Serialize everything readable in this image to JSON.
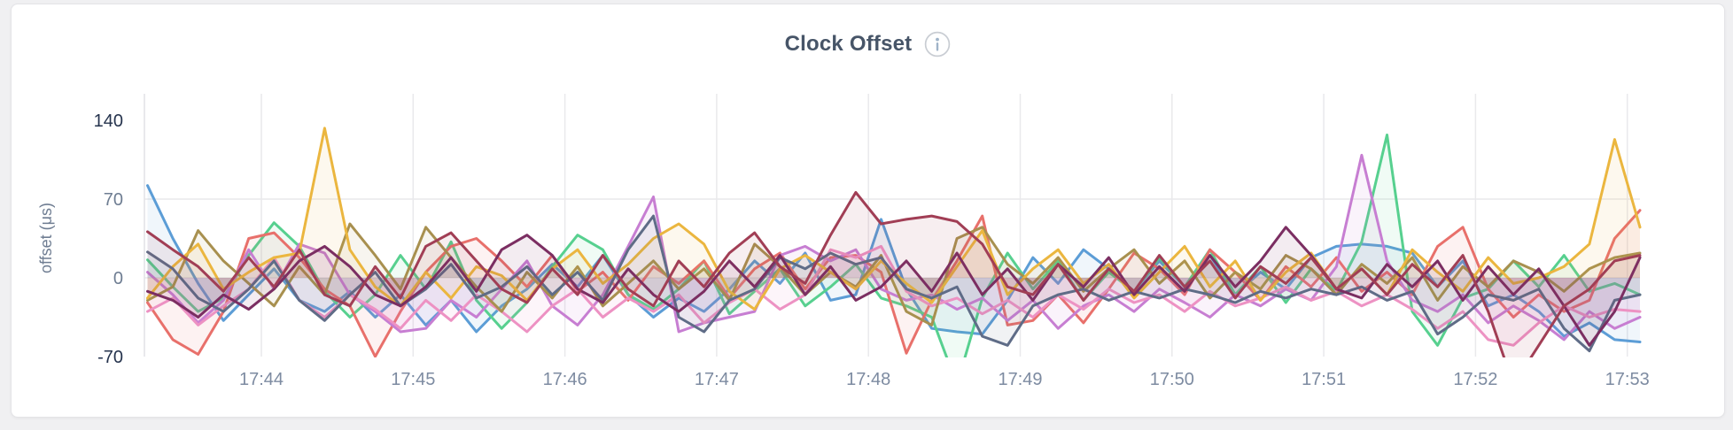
{
  "header": {
    "title": "Clock Offset"
  },
  "colors": {
    "page_background": "#f0f0f2",
    "card_background": "#ffffff",
    "card_border": "#e4e4e7",
    "title_text": "#475568",
    "info_icon_ring": "#c9cdd3",
    "info_icon_glyph": "#9fb3c8",
    "grid_line": "#e9e9ec",
    "y_axis_line": "#e2e2e6",
    "x_tick_label": "#7d8ba1",
    "y_axis_title": "#6f7d92"
  },
  "chart_data": {
    "type": "line",
    "title": "Clock Offset",
    "xlabel": "",
    "ylabel": "offset (μs)",
    "ylim": [
      -70,
      140
    ],
    "grid": "on",
    "legend_position": "none",
    "area_fill_opacity": 0.09,
    "line_width": 3,
    "x_start_min": 43.25,
    "x_step_min": 0.1666667,
    "x_ticks": [
      {
        "minute": 44,
        "label": "17:44"
      },
      {
        "minute": 45,
        "label": "17:45"
      },
      {
        "minute": 46,
        "label": "17:46"
      },
      {
        "minute": 47,
        "label": "17:47"
      },
      {
        "minute": 48,
        "label": "17:48"
      },
      {
        "minute": 49,
        "label": "17:49"
      },
      {
        "minute": 50,
        "label": "17:50"
      },
      {
        "minute": 51,
        "label": "17:51"
      },
      {
        "minute": 52,
        "label": "17:52"
      },
      {
        "minute": 53,
        "label": "17:53"
      }
    ],
    "y_ticks": [
      {
        "value": 140,
        "label": "140",
        "color": "#25334d"
      },
      {
        "value": 70,
        "label": "70",
        "color": "#6e7d92"
      },
      {
        "value": 0,
        "label": "0",
        "color": "#6e7d92"
      },
      {
        "value": -70,
        "label": "-70",
        "color": "#25334d"
      }
    ],
    "horizontal_grid_values": [
      70,
      0
    ],
    "series": [
      {
        "name": "series-blue",
        "color": "#5c9dd6",
        "values": [
          82,
          35,
          -5,
          -38,
          -15,
          8,
          -20,
          -30,
          -12,
          -35,
          -15,
          -42,
          -20,
          -48,
          -25,
          -10,
          12,
          -8,
          20,
          -15,
          -35,
          -18,
          -30,
          -10,
          15,
          -5,
          22,
          -20,
          -15,
          52,
          -10,
          -45,
          -48,
          -50,
          -20,
          18,
          -5,
          25,
          8,
          -12,
          15,
          -8,
          20,
          -15,
          5,
          -10,
          18,
          28,
          30,
          28,
          22,
          -8,
          15,
          -25,
          -15,
          -30,
          -52,
          -40,
          -55,
          -57
        ]
      },
      {
        "name": "series-green",
        "color": "#57d08f",
        "values": [
          16,
          -8,
          -30,
          -18,
          20,
          49,
          28,
          -12,
          -35,
          -15,
          20,
          -10,
          32,
          -20,
          -45,
          -22,
          10,
          38,
          25,
          -15,
          -28,
          -10,
          15,
          -32,
          -12,
          8,
          -25,
          -8,
          12,
          -18,
          -25,
          -35,
          -95,
          -18,
          22,
          -10,
          15,
          -20,
          5,
          -12,
          18,
          -8,
          25,
          -15,
          10,
          -22,
          8,
          -12,
          32,
          127,
          -30,
          -60,
          -18,
          -10,
          15,
          -8,
          20,
          -12,
          -5,
          -15
        ]
      },
      {
        "name": "series-salmon",
        "color": "#e8706b",
        "values": [
          -22,
          -55,
          -68,
          -30,
          35,
          40,
          18,
          -10,
          -25,
          -70,
          -30,
          5,
          28,
          35,
          15,
          -8,
          20,
          -12,
          5,
          -20,
          10,
          -5,
          15,
          -18,
          8,
          22,
          -10,
          18,
          20,
          5,
          -67,
          -20,
          15,
          55,
          -42,
          -38,
          -15,
          -40,
          -10,
          22,
          8,
          -15,
          25,
          5,
          -20,
          10,
          -8,
          18,
          -12,
          5,
          -15,
          28,
          45,
          -10,
          -35,
          -15,
          -30,
          -20,
          35,
          60
        ]
      },
      {
        "name": "series-orchid",
        "color": "#c77ed2",
        "values": [
          5,
          -15,
          -40,
          -20,
          25,
          -10,
          30,
          22,
          -15,
          -30,
          -48,
          -45,
          -20,
          -35,
          -10,
          15,
          -25,
          -42,
          -15,
          28,
          72,
          -48,
          -40,
          -35,
          -30,
          20,
          28,
          15,
          25,
          -10,
          -20,
          -15,
          -28,
          -18,
          -38,
          -20,
          -45,
          -25,
          -15,
          -30,
          -10,
          -22,
          -35,
          -15,
          -25,
          -10,
          -20,
          10,
          109,
          15,
          -20,
          -30,
          -15,
          -40,
          -25,
          -38,
          -55,
          -30,
          -45,
          -35
        ]
      },
      {
        "name": "series-pink",
        "color": "#ed92c3",
        "values": [
          -30,
          -18,
          -42,
          -25,
          -10,
          18,
          -20,
          -35,
          -15,
          -28,
          -45,
          -20,
          -38,
          -15,
          -30,
          -48,
          -25,
          -10,
          -35,
          -18,
          -30,
          -15,
          -40,
          -22,
          -10,
          -28,
          -15,
          25,
          18,
          28,
          -12,
          -25,
          -18,
          -32,
          -20,
          -35,
          -15,
          -28,
          -10,
          -22,
          -15,
          -30,
          -12,
          -25,
          -18,
          -8,
          -20,
          -12,
          -25,
          -15,
          -28,
          -45,
          -30,
          -55,
          -60,
          -40,
          -25,
          -35,
          -28,
          -30
        ]
      },
      {
        "name": "series-khaki",
        "color": "#a8904f",
        "values": [
          -20,
          -8,
          42,
          15,
          -5,
          -25,
          10,
          -15,
          48,
          20,
          -10,
          45,
          18,
          -8,
          -30,
          5,
          -18,
          10,
          -25,
          -5,
          15,
          -10,
          8,
          -20,
          30,
          10,
          -15,
          5,
          -8,
          20,
          -30,
          -42,
          35,
          45,
          12,
          -5,
          18,
          -12,
          8,
          25,
          -5,
          15,
          -18,
          5,
          -10,
          20,
          8,
          -15,
          12,
          -5,
          18,
          -20,
          10,
          -8,
          15,
          5,
          -12,
          8,
          18,
          22
        ]
      },
      {
        "name": "series-gold",
        "color": "#ebb63f",
        "values": [
          -18,
          10,
          30,
          -10,
          5,
          18,
          22,
          133,
          25,
          -8,
          -25,
          5,
          -18,
          10,
          2,
          -20,
          8,
          25,
          -5,
          12,
          35,
          48,
          30,
          -12,
          -28,
          8,
          20,
          5,
          -10,
          15,
          -5,
          -22,
          10,
          42,
          -15,
          8,
          25,
          -5,
          12,
          -18,
          5,
          28,
          -8,
          15,
          -20,
          5,
          22,
          -10,
          8,
          -15,
          25,
          5,
          -12,
          18,
          -5,
          0,
          10,
          30,
          123,
          45
        ]
      },
      {
        "name": "series-slate",
        "color": "#5f6c87",
        "values": [
          23,
          8,
          -18,
          -30,
          -10,
          15,
          -20,
          -38,
          -15,
          5,
          -25,
          -10,
          12,
          -18,
          -8,
          10,
          -15,
          5,
          -20,
          25,
          55,
          -35,
          -48,
          -20,
          -10,
          18,
          8,
          22,
          12,
          18,
          -10,
          -18,
          -8,
          -52,
          -60,
          -25,
          -15,
          -10,
          -20,
          -12,
          -18,
          -10,
          -15,
          -22,
          -12,
          -18,
          -10,
          -15,
          -8,
          -20,
          -12,
          -50,
          -35,
          -15,
          -20,
          -10,
          -45,
          -65,
          -20,
          -15
        ]
      },
      {
        "name": "series-plum",
        "color": "#7b2e62",
        "values": [
          -12,
          -20,
          -35,
          -15,
          -28,
          -10,
          15,
          28,
          10,
          -15,
          -25,
          -8,
          18,
          -12,
          25,
          38,
          20,
          -10,
          -22,
          8,
          -15,
          -30,
          -12,
          15,
          -8,
          20,
          -15,
          10,
          -20,
          -8,
          15,
          -12,
          22,
          -15,
          8,
          -20,
          12,
          -8,
          18,
          -15,
          10,
          -12,
          20,
          -8,
          15,
          45,
          20,
          -10,
          -18,
          12,
          -8,
          15,
          -20,
          10,
          -15,
          8,
          -25,
          -60,
          -30,
          18
        ]
      },
      {
        "name": "series-maroon",
        "color": "#a13e55",
        "values": [
          41,
          25,
          10,
          -12,
          18,
          -8,
          25,
          -15,
          -25,
          10,
          -18,
          28,
          40,
          15,
          -10,
          -22,
          8,
          -15,
          20,
          -10,
          -25,
          15,
          -8,
          22,
          40,
          10,
          -5,
          38,
          76,
          48,
          52,
          55,
          50,
          30,
          -8,
          -15,
          12,
          -20,
          8,
          -12,
          20,
          -8,
          15,
          -18,
          10,
          -5,
          18,
          -10,
          8,
          -15,
          12,
          -8,
          20,
          -30,
          -95,
          -60,
          -25,
          -10,
          15,
          20
        ]
      }
    ]
  }
}
